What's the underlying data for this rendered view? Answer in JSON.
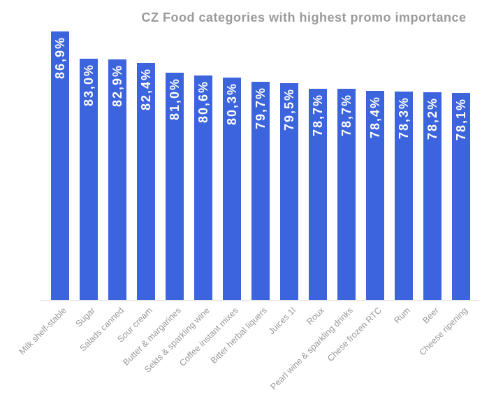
{
  "title": "CZ Food categories with highest promo importance",
  "chart_data": {
    "type": "bar",
    "orientation": "vertical",
    "title": "CZ Food categories with highest promo importance",
    "categories": [
      "Milk shelf-stable",
      "Sugar",
      "Salads canned",
      "Sour cream",
      "Butter & margarines",
      "Sekts & sparkling wine",
      "Coffee instant mixes",
      "Bitter herbal liquers",
      "Juices 1l",
      "Roux",
      "Pearl wine & sparkling drinks",
      "Chese frozen RTC",
      "Rum",
      "Beer",
      "Cheese ripening"
    ],
    "values": [
      86.9,
      83.0,
      82.9,
      82.4,
      81.0,
      80.6,
      80.3,
      79.7,
      79.5,
      78.7,
      78.7,
      78.4,
      78.3,
      78.2,
      78.1
    ],
    "labels": [
      "86,9%",
      "83,0%",
      "82,9%",
      "82,4%",
      "81,0%",
      "80,6%",
      "80,3%",
      "79,7%",
      "79,5%",
      "78,7%",
      "78,7%",
      "78,4%",
      "78,3%",
      "78,2%",
      "78,1%"
    ],
    "value_label_format": "comma-decimal-percent",
    "xlabel": "",
    "ylabel": "",
    "ylim": [
      48.5,
      90
    ],
    "grid": false,
    "legend": "none",
    "y_axis_labels_visible": false,
    "colors": {
      "bar": "#3c64dc",
      "value_label": "#ffffff",
      "title": "#9a9a9a",
      "category_label": "#999999",
      "baseline": "#e9e9e9",
      "background": "#ffffff"
    }
  }
}
